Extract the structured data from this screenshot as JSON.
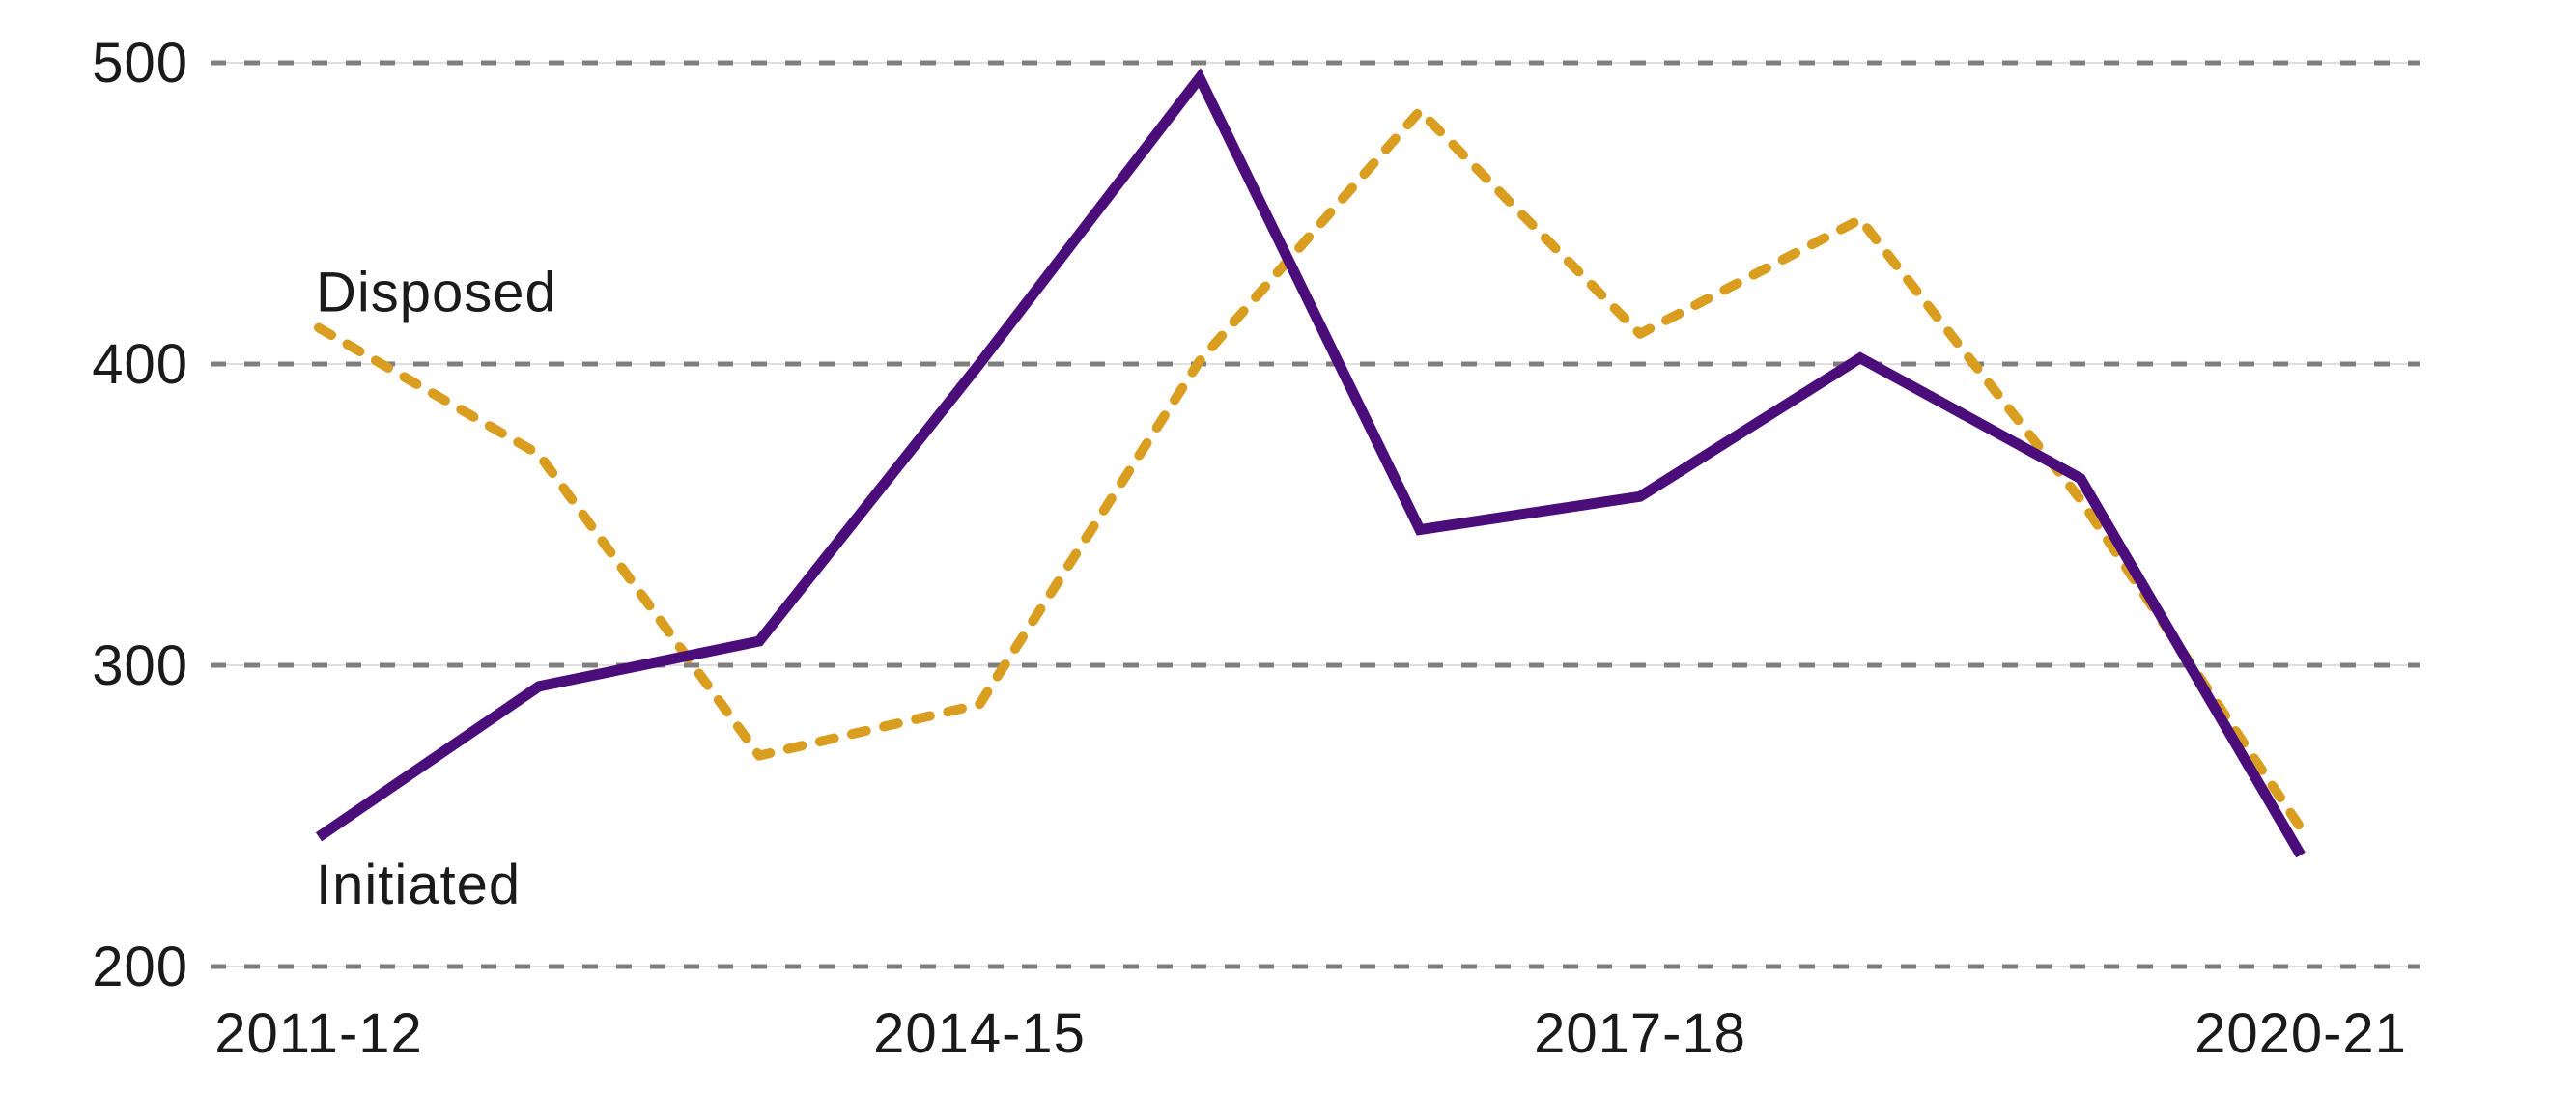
{
  "chart_data": {
    "type": "line",
    "categories": [
      "2011-12",
      "2012-13",
      "2013-14",
      "2014-15",
      "2015-16",
      "2016-17",
      "2017-18",
      "2018-19",
      "2019-20",
      "2020-21"
    ],
    "x_axis_labels_visible": [
      "2011-12",
      "2014-15",
      "2017-18",
      "2020-21"
    ],
    "series": [
      {
        "name": "Disposed",
        "style": "dashed",
        "color": "#D99D20",
        "values": [
          412,
          370,
          270,
          287,
          401,
          484,
          410,
          448,
          355,
          246
        ]
      },
      {
        "name": "Initiated",
        "style": "solid",
        "color": "#4A0D79",
        "values": [
          243,
          293,
          308,
          400,
          495,
          345,
          356,
          402,
          362,
          237
        ]
      }
    ],
    "ylim": [
      200,
      500
    ],
    "yticks": [
      500,
      400,
      300,
      200
    ],
    "xlabel": "",
    "ylabel": "",
    "title": "",
    "grid": "horizontal-dashed",
    "gridline_color": "#7F7F7F",
    "legend": "inline-labels",
    "annotations": [
      {
        "text": "Disposed",
        "anchor_category": "2011-12",
        "placement": "above-first-point"
      },
      {
        "text": "Initiated",
        "anchor_category": "2011-12",
        "placement": "below-first-point"
      }
    ]
  },
  "text_color": "#1a1a1a",
  "background_color": "#ffffff"
}
